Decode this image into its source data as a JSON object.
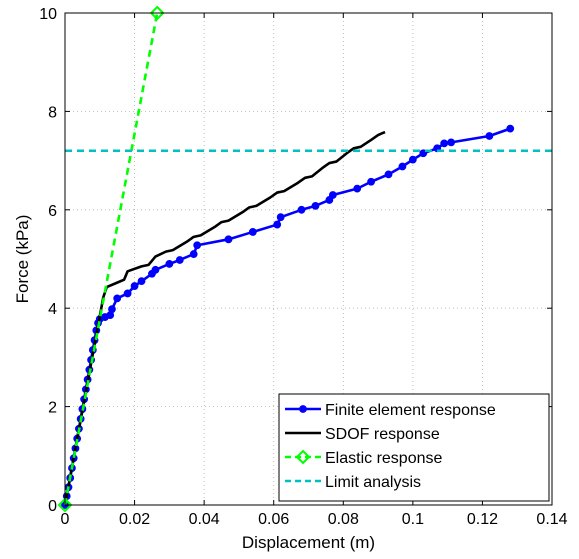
{
  "chart_data": {
    "type": "line",
    "title": "",
    "xlabel": "Displacement (m)",
    "ylabel": "Force (kPa)",
    "xlim": [
      0,
      0.14
    ],
    "ylim": [
      0,
      10
    ],
    "xticks": [
      "0",
      "0.02",
      "0.04",
      "0.06",
      "0.08",
      "0.1",
      "0.12",
      "0.14"
    ],
    "yticks": [
      "0",
      "2",
      "4",
      "6",
      "8",
      "10"
    ],
    "grid": true,
    "legend_position": "bottom-right",
    "series": [
      {
        "name": "Finite element response",
        "color": "#0000ff",
        "style": "solid",
        "marker": "circle",
        "x": [
          0,
          0.0005,
          0.001,
          0.0015,
          0.002,
          0.0025,
          0.003,
          0.0035,
          0.004,
          0.0045,
          0.005,
          0.0055,
          0.006,
          0.0065,
          0.007,
          0.0075,
          0.008,
          0.0085,
          0.009,
          0.0095,
          0.01,
          0.0115,
          0.013,
          0.0135,
          0.015,
          0.018,
          0.02,
          0.022,
          0.025,
          0.026,
          0.03,
          0.033,
          0.037,
          0.038,
          0.047,
          0.054,
          0.061,
          0.062,
          0.068,
          0.072,
          0.076,
          0.077,
          0.084,
          0.088,
          0.093,
          0.097,
          0.1,
          0.103,
          0.107,
          0.109,
          0.111,
          0.122,
          0.128
        ],
        "y": [
          0,
          0.18,
          0.36,
          0.55,
          0.75,
          0.95,
          1.15,
          1.35,
          1.55,
          1.75,
          1.95,
          2.15,
          2.35,
          2.55,
          2.75,
          2.95,
          3.15,
          3.35,
          3.55,
          3.7,
          3.78,
          3.82,
          3.86,
          3.98,
          4.2,
          4.3,
          4.45,
          4.55,
          4.7,
          4.78,
          4.9,
          4.98,
          5.1,
          5.28,
          5.4,
          5.55,
          5.7,
          5.85,
          6.0,
          6.08,
          6.2,
          6.3,
          6.43,
          6.57,
          6.72,
          6.88,
          7.02,
          7.15,
          7.25,
          7.35,
          7.37,
          7.5,
          7.65
        ]
      },
      {
        "name": "SDOF response",
        "color": "#000000",
        "style": "solid",
        "marker": "none",
        "x": [
          0,
          0.011,
          0.012,
          0.015,
          0.017,
          0.018,
          0.022,
          0.024,
          0.026,
          0.029,
          0.031,
          0.035,
          0.037,
          0.039,
          0.043,
          0.045,
          0.047,
          0.051,
          0.053,
          0.055,
          0.059,
          0.061,
          0.063,
          0.067,
          0.069,
          0.071,
          0.074,
          0.076,
          0.078,
          0.081,
          0.083,
          0.085,
          0.088,
          0.09,
          0.092
        ],
        "y": [
          0,
          4.22,
          4.43,
          4.52,
          4.58,
          4.75,
          4.85,
          4.88,
          5.05,
          5.15,
          5.18,
          5.35,
          5.45,
          5.48,
          5.65,
          5.75,
          5.78,
          5.95,
          6.05,
          6.08,
          6.25,
          6.35,
          6.38,
          6.55,
          6.65,
          6.68,
          6.85,
          6.95,
          6.98,
          7.15,
          7.25,
          7.28,
          7.42,
          7.52,
          7.58
        ]
      },
      {
        "name": "Elastic response",
        "color": "#00ff00",
        "style": "dashed",
        "marker": "diamond",
        "x": [
          0,
          0.0265
        ],
        "y": [
          0,
          10
        ]
      },
      {
        "name": "Limit analysis",
        "color": "#00c0c0",
        "style": "dashed",
        "marker": "none",
        "x": [
          0,
          0.14
        ],
        "y": [
          7.2,
          7.2
        ]
      }
    ]
  }
}
